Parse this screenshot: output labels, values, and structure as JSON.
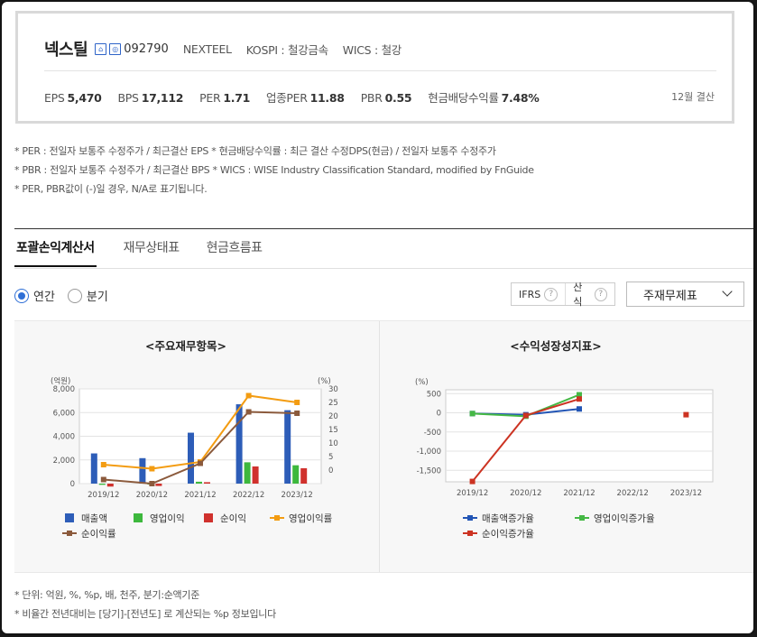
{
  "company": {
    "name": "넥스틸",
    "icon1": "home",
    "icon2": "ir",
    "code": "092790",
    "eng_name": "NEXTEEL",
    "market": "KOSPI : 철강금속",
    "wics": "WICS : 철강"
  },
  "metrics": [
    {
      "label": "EPS",
      "value": "5,470"
    },
    {
      "label": "BPS",
      "value": "17,112"
    },
    {
      "label": "PER",
      "value": "1.71"
    },
    {
      "label": "업종PER",
      "value": "11.88"
    },
    {
      "label": "PBR",
      "value": "0.55"
    },
    {
      "label": "현금배당수익률",
      "value": "7.48%"
    }
  ],
  "settlement": "12월 결산",
  "notes": [
    "* PER : 전일자 보통주 수정주가 / 최근결산 EPS * 현금배당수익률 : 최근 결산 수정DPS(현금) / 전일자 보통주 수정주가",
    "* PBR : 전일자 보통주 수정주가 / 최근결산 BPS * WICS : WISE Industry Classification Standard, modified by FnGuide",
    "* PER, PBR값이 (-)일 경우, N/A로 표기됩니다."
  ],
  "tabs": [
    "포괄손익계산서",
    "재무상태표",
    "현금흐름표"
  ],
  "period_options": [
    {
      "label": "연간",
      "selected": true
    },
    {
      "label": "분기",
      "selected": false
    }
  ],
  "chips": [
    "IFRS",
    "산식"
  ],
  "help_glyph": "?",
  "dropdown": {
    "value": "주재무제표"
  },
  "colors": {
    "blue": "#2d5db8",
    "green": "#3db83d",
    "red": "#d0312d",
    "orange": "#f39c12",
    "brown": "#8b5a3c",
    "blue_line": "#2255b5",
    "green_line": "#45b845",
    "red_line": "#cc3322"
  },
  "chart_data": [
    {
      "type": "bar",
      "title": "<주요재무항목>",
      "xlabel": "",
      "ylabel": "(억원)",
      "y2label": "(%)",
      "categories": [
        "2019/12",
        "2020/12",
        "2021/12",
        "2022/12",
        "2023/12"
      ],
      "ylim": [
        0,
        8000
      ],
      "y2lim": [
        -5,
        30
      ],
      "yticks": [
        "0",
        "2,000",
        "4,000",
        "6,000",
        "8,000"
      ],
      "y2ticks": [
        "0",
        "5",
        "10",
        "15",
        "20",
        "25",
        "30"
      ],
      "series": [
        {
          "name": "매출액",
          "kind": "bar",
          "axis": "left",
          "values": [
            2550,
            2150,
            4300,
            6700,
            6200
          ]
        },
        {
          "name": "영업이익",
          "kind": "bar",
          "axis": "left",
          "values": [
            -100,
            -60,
            160,
            1800,
            1550
          ]
        },
        {
          "name": "순이익",
          "kind": "bar",
          "axis": "left",
          "values": [
            -250,
            -200,
            120,
            1450,
            1300
          ]
        },
        {
          "name": "영업이익률",
          "kind": "line",
          "axis": "right",
          "values": [
            2,
            0.5,
            3,
            27.5,
            25
          ]
        },
        {
          "name": "순이익률",
          "kind": "line",
          "axis": "right",
          "values": [
            -3.5,
            -5,
            2.5,
            21.5,
            21
          ]
        }
      ],
      "grid": true,
      "legend": "bottom"
    },
    {
      "type": "line",
      "title": "<수익성장성지표>",
      "xlabel": "",
      "ylabel": "(%)",
      "categories": [
        "2019/12",
        "2020/12",
        "2021/12",
        "2022/12",
        "2023/12"
      ],
      "ylim": [
        -1800,
        600
      ],
      "yticks": [
        "-1,500",
        "-1,000",
        "-500",
        "0",
        "500"
      ],
      "series": [
        {
          "name": "매출액증가율",
          "values": [
            -20,
            -50,
            100,
            null,
            null
          ]
        },
        {
          "name": "영업이익증가율",
          "values": [
            -20,
            -90,
            470,
            null,
            null
          ]
        },
        {
          "name": "순이익증가율",
          "values": [
            -1790,
            -70,
            360,
            null,
            -50
          ]
        }
      ],
      "grid": true,
      "legend": "bottom"
    }
  ],
  "footnotes": [
    "* 단위: 억원, %, %p, 배, 천주, 분기:순액기준",
    "* 비율간 전년대비는 [당기]-[전년도] 로 계산되는 %p 정보입니다"
  ]
}
